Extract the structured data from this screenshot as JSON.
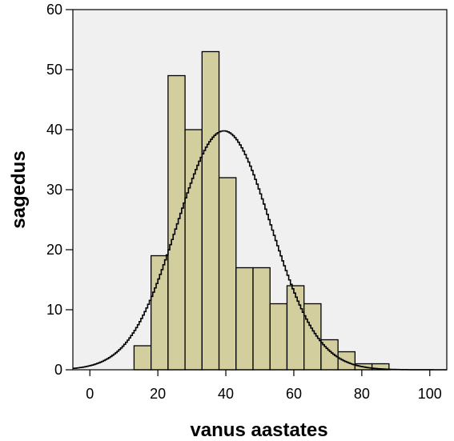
{
  "chart_data": {
    "type": "bar",
    "title": "",
    "xlabel": "vanus aastates",
    "ylabel": "sagedus",
    "xlim": [
      -5,
      105
    ],
    "ylim": [
      0,
      60
    ],
    "xticks": [
      0,
      20,
      40,
      60,
      80,
      100
    ],
    "yticks": [
      0,
      10,
      20,
      30,
      40,
      50,
      60
    ],
    "grid": false,
    "legend": "none",
    "bin_width": 5,
    "bins": [
      {
        "start": 13,
        "end": 18,
        "count": 4
      },
      {
        "start": 18,
        "end": 23,
        "count": 19
      },
      {
        "start": 23,
        "end": 28,
        "count": 49
      },
      {
        "start": 28,
        "end": 33,
        "count": 40
      },
      {
        "start": 33,
        "end": 38,
        "count": 53
      },
      {
        "start": 38,
        "end": 43,
        "count": 32
      },
      {
        "start": 43,
        "end": 48,
        "count": 17
      },
      {
        "start": 48,
        "end": 53,
        "count": 17
      },
      {
        "start": 53,
        "end": 58,
        "count": 11
      },
      {
        "start": 58,
        "end": 63,
        "count": 14
      },
      {
        "start": 63,
        "end": 68,
        "count": 11
      },
      {
        "start": 68,
        "end": 73,
        "count": 5
      },
      {
        "start": 73,
        "end": 78,
        "count": 3
      },
      {
        "start": 78,
        "end": 83,
        "count": 1
      },
      {
        "start": 83,
        "end": 88,
        "count": 1
      }
    ],
    "normal_curve": {
      "mean": 39.2,
      "sd": 13.8,
      "peak": 39.8
    },
    "colors": {
      "plot_background": "#f0f0f0",
      "bar_fill": "#d3ce9e",
      "bar_stroke": "#000000",
      "curve": "#000000"
    }
  }
}
